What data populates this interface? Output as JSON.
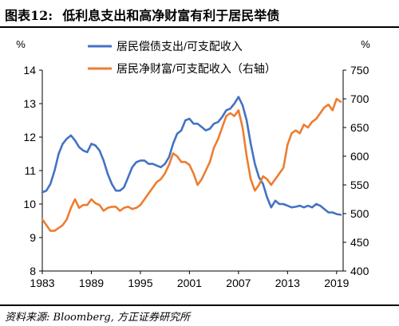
{
  "header": {
    "figure_no": "图表12:",
    "title": "低利息支出和高净财富有利于居民举债"
  },
  "footer": {
    "source": "资料来源: Bloomberg, 方正证券研究所"
  },
  "chart_data": {
    "type": "line",
    "y_left_unit": "%",
    "y_right_unit": "%",
    "x_ticks": [
      "1983",
      "1989",
      "1995",
      "2001",
      "2007",
      "2013",
      "2019"
    ],
    "y_left_ticks": [
      "8",
      "9",
      "10",
      "11",
      "12",
      "13",
      "14"
    ],
    "y_right_ticks": [
      "400",
      "450",
      "500",
      "550",
      "600",
      "650",
      "700",
      "750"
    ],
    "xlim": [
      1983,
      2019.8
    ],
    "ylim_left": [
      8,
      14
    ],
    "ylim_right": [
      400,
      750
    ],
    "legend_position": "top",
    "series": [
      {
        "name": "居民偿债支出/可支配收入",
        "axis": "left",
        "color": "#4472C4",
        "x": [
          1983.0,
          1983.5,
          1984.0,
          1984.5,
          1985.0,
          1985.5,
          1986.0,
          1986.5,
          1987.0,
          1987.5,
          1988.0,
          1988.5,
          1989.0,
          1989.5,
          1990.0,
          1990.5,
          1991.0,
          1991.5,
          1992.0,
          1992.5,
          1993.0,
          1993.5,
          1994.0,
          1994.5,
          1995.0,
          1995.5,
          1996.0,
          1996.5,
          1997.0,
          1997.5,
          1998.0,
          1998.5,
          1999.0,
          1999.5,
          2000.0,
          2000.5,
          2001.0,
          2001.5,
          2002.0,
          2002.5,
          2003.0,
          2003.5,
          2004.0,
          2004.5,
          2005.0,
          2005.5,
          2006.0,
          2006.5,
          2007.0,
          2007.5,
          2008.0,
          2008.5,
          2009.0,
          2009.5,
          2010.0,
          2010.5,
          2011.0,
          2011.5,
          2012.0,
          2012.5,
          2013.0,
          2013.5,
          2014.0,
          2014.5,
          2015.0,
          2015.5,
          2016.0,
          2016.5,
          2017.0,
          2017.5,
          2018.0,
          2018.5,
          2019.0,
          2019.5
        ],
        "values": [
          10.35,
          10.4,
          10.6,
          11.0,
          11.5,
          11.8,
          11.95,
          12.05,
          11.9,
          11.7,
          11.6,
          11.55,
          11.8,
          11.75,
          11.6,
          11.3,
          10.9,
          10.6,
          10.4,
          10.4,
          10.5,
          10.8,
          11.1,
          11.25,
          11.3,
          11.3,
          11.2,
          11.2,
          11.15,
          11.1,
          11.2,
          11.4,
          11.8,
          12.1,
          12.2,
          12.5,
          12.55,
          12.4,
          12.4,
          12.3,
          12.2,
          12.25,
          12.4,
          12.45,
          12.6,
          12.8,
          12.85,
          13.0,
          13.2,
          12.95,
          12.5,
          11.8,
          11.2,
          10.8,
          10.6,
          10.2,
          9.9,
          10.1,
          10.0,
          10.0,
          9.95,
          9.9,
          9.92,
          9.95,
          9.9,
          9.95,
          9.9,
          10.0,
          9.95,
          9.85,
          9.75,
          9.75,
          9.7,
          9.68
        ]
      },
      {
        "name": "居民净财富/可支配收入（右轴）",
        "axis": "right",
        "color": "#ED7D31",
        "x": [
          1983.0,
          1983.5,
          1984.0,
          1984.5,
          1985.0,
          1985.5,
          1986.0,
          1986.5,
          1987.0,
          1987.5,
          1988.0,
          1988.5,
          1989.0,
          1989.5,
          1990.0,
          1990.5,
          1991.0,
          1991.5,
          1992.0,
          1992.5,
          1993.0,
          1993.5,
          1994.0,
          1994.5,
          1995.0,
          1995.5,
          1996.0,
          1996.5,
          1997.0,
          1997.5,
          1998.0,
          1998.5,
          1999.0,
          1999.5,
          2000.0,
          2000.5,
          2001.0,
          2001.5,
          2002.0,
          2002.5,
          2003.0,
          2003.5,
          2004.0,
          2004.5,
          2005.0,
          2005.5,
          2006.0,
          2006.5,
          2007.0,
          2007.5,
          2008.0,
          2008.5,
          2009.0,
          2009.5,
          2010.0,
          2010.5,
          2011.0,
          2011.5,
          2012.0,
          2012.5,
          2013.0,
          2013.5,
          2014.0,
          2014.5,
          2015.0,
          2015.5,
          2016.0,
          2016.5,
          2017.0,
          2017.5,
          2018.0,
          2018.5,
          2019.0,
          2019.5
        ],
        "values": [
          490,
          480,
          470,
          470,
          475,
          480,
          490,
          510,
          525,
          510,
          515,
          515,
          525,
          518,
          515,
          505,
          510,
          512,
          512,
          505,
          510,
          512,
          508,
          510,
          515,
          525,
          535,
          545,
          555,
          560,
          570,
          585,
          605,
          600,
          590,
          590,
          585,
          570,
          550,
          560,
          575,
          590,
          615,
          630,
          650,
          670,
          675,
          670,
          680,
          650,
          600,
          560,
          540,
          550,
          565,
          560,
          550,
          560,
          570,
          580,
          620,
          640,
          645,
          640,
          655,
          650,
          660,
          665,
          675,
          685,
          690,
          680,
          700,
          695
        ]
      }
    ]
  }
}
